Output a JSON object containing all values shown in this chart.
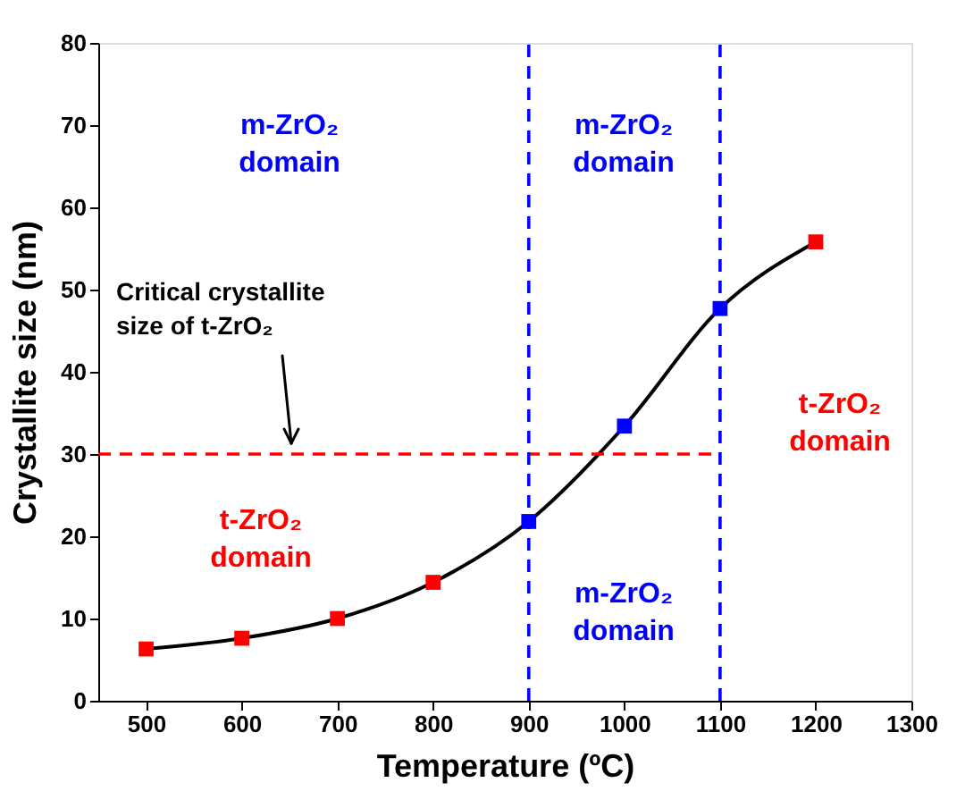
{
  "chart_data": {
    "type": "line",
    "xlabel": "Temperature (ºC)",
    "ylabel": "Crystallite size (nm)",
    "x": [
      500,
      600,
      700,
      800,
      900,
      1000,
      1100,
      1200
    ],
    "series": [
      {
        "color": "#000000",
        "colors": [
          "#ff0000",
          "#ff0000",
          "#ff0000",
          "#ff0000",
          "#0000ff",
          "#0000ff",
          "#0000ff",
          "#ff0000"
        ],
        "values": [
          6.3,
          7.6,
          10.0,
          14.4,
          21.8,
          33.4,
          47.7,
          55.8
        ]
      }
    ],
    "marker": "square",
    "line_style": "solid",
    "xlim": [
      450,
      1300
    ],
    "xticks": [
      500,
      600,
      700,
      800,
      900,
      1000,
      1100,
      1200,
      1300
    ],
    "ylim": [
      0,
      80
    ],
    "yticks": [
      0,
      10,
      20,
      30,
      40,
      50,
      60,
      70,
      80
    ],
    "grid": false,
    "ref_lines": [
      {
        "axis": "y",
        "value": 30,
        "color": "#ff0000",
        "line_style": "dashed"
      },
      {
        "axis": "x",
        "value": 900,
        "color": "#0000ff",
        "line_style": "dashed"
      },
      {
        "axis": "x",
        "value": 1100,
        "color": "#0000ff",
        "line_style": "dashed"
      }
    ],
    "annotations": [
      "m-ZrO₂\ndomain",
      "m-ZrO₂\ndomain",
      "m-ZrO₂\ndomain",
      "t-ZrO₂\ndomain",
      "t-ZrO₂\ndomain",
      "Critical crystallite\nsize of t-ZrO₂"
    ]
  }
}
